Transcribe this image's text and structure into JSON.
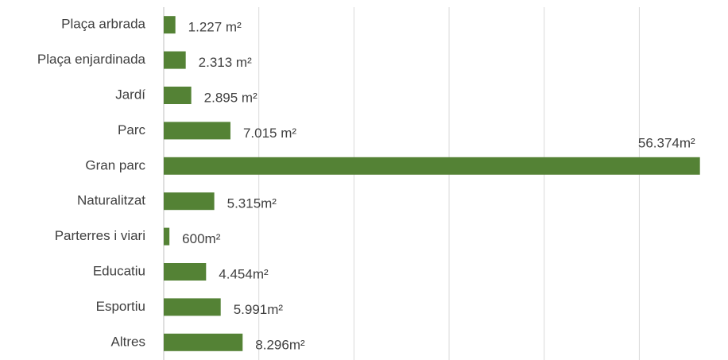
{
  "chart_data": {
    "type": "hbar",
    "categories": [
      "Plaça arbrada",
      "Plaça enjardinada",
      "Jardí",
      "Parc",
      "Gran parc",
      "Naturalitzat",
      "Parterres i viari",
      "Educatiu",
      "Esportiu",
      "Altres"
    ],
    "values": [
      1227,
      2313,
      2895,
      7015,
      56374,
      5315,
      600,
      4454,
      5991,
      8296
    ],
    "value_labels": [
      "1.227 m²",
      "2.313 m²",
      "2.895 m²",
      "7.015 m²",
      "56.374m²",
      "5.315m²",
      "600m²",
      "4.454m²",
      "5.991m²",
      "8.296m²"
    ],
    "color": "#548235",
    "xlim": [
      0,
      56400
    ],
    "xticks": [
      0,
      10000,
      20000,
      30000,
      40000,
      50000
    ],
    "grid": true
  }
}
